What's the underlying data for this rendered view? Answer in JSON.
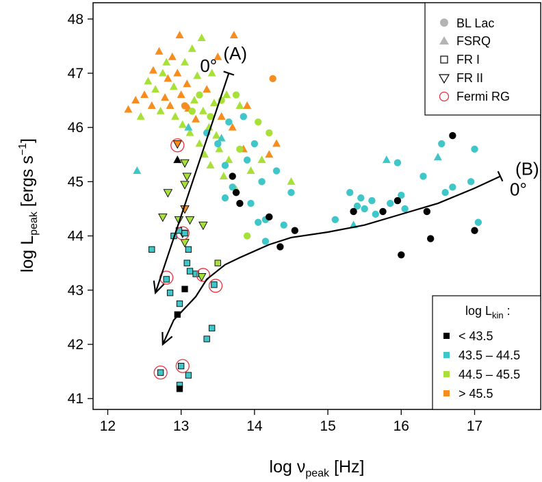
{
  "chart_data": {
    "type": "scatter",
    "title": "",
    "xlabel": "log ν",
    "xlabel_sub": "peak",
    "xlabel_unit": " [Hz]",
    "ylabel": "log L",
    "ylabel_sub": "peak",
    "ylabel_unit": " [ergs s",
    "ylabel_sup": "−1",
    "ylabel_close": "]",
    "xlim": [
      11.8,
      17.9
    ],
    "ylim": [
      40.8,
      48.3
    ],
    "xticks": [
      "12",
      "13",
      "14",
      "15",
      "16",
      "17"
    ],
    "yticks": [
      "41",
      "42",
      "43",
      "44",
      "45",
      "46",
      "47",
      "48"
    ],
    "grid": false,
    "legend_shape": {
      "position": "top-right",
      "entries": [
        {
          "label": "BL Lac",
          "marker": "circle"
        },
        {
          "label": "FSRQ",
          "marker": "triangle"
        },
        {
          "label": "FR I",
          "marker": "square-open"
        },
        {
          "label": "FR II",
          "marker": "triangle-down-open"
        },
        {
          "label": "Fermi RG",
          "marker": "ring-red"
        }
      ]
    },
    "legend_color": {
      "position": "bottom-right",
      "title": "log L",
      "title_sub": "kin",
      "title_tail": " :",
      "entries": [
        {
          "label": "< 43.5",
          "color": "#000000"
        },
        {
          "label": "43.5 – 44.5",
          "color": "#3fc6c9"
        },
        {
          "label": "44.5 – 45.5",
          "color": "#a8e03a"
        },
        {
          "label": "> 45.5",
          "color": "#f78c1f"
        }
      ]
    },
    "colors": {
      "black": "#000000",
      "cyan": "#3fc6c9",
      "green": "#a8e03a",
      "orange": "#f78c1f",
      "fermi": "#e8323c"
    },
    "tracks": [
      {
        "name": "(A)",
        "label_angle": "0°",
        "x": [
          13.65,
          12.65
        ],
        "y": [
          47.0,
          42.95
        ]
      },
      {
        "name": "(B)",
        "label_angle": "0°",
        "x": [
          17.35,
          17.0,
          16.5,
          16.0,
          15.5,
          15.0,
          14.5,
          14.2,
          13.8,
          13.6,
          13.35,
          13.2,
          12.9,
          12.75
        ],
        "y": [
          45.1,
          44.88,
          44.6,
          44.4,
          44.2,
          44.07,
          43.97,
          43.84,
          43.6,
          43.47,
          43.2,
          42.88,
          42.45,
          42.0
        ]
      }
    ],
    "points": [
      {
        "x": 12.28,
        "y": 46.33,
        "m": "tri",
        "c": "orange"
      },
      {
        "x": 12.38,
        "y": 46.5,
        "m": "tri",
        "c": "orange"
      },
      {
        "x": 12.45,
        "y": 46.2,
        "m": "tri",
        "c": "green"
      },
      {
        "x": 12.5,
        "y": 46.6,
        "m": "tri",
        "c": "orange"
      },
      {
        "x": 12.55,
        "y": 46.85,
        "m": "tri",
        "c": "green"
      },
      {
        "x": 12.6,
        "y": 46.4,
        "m": "tri",
        "c": "orange"
      },
      {
        "x": 12.62,
        "y": 47.05,
        "m": "tri",
        "c": "orange"
      },
      {
        "x": 12.65,
        "y": 46.7,
        "m": "tri",
        "c": "green"
      },
      {
        "x": 12.7,
        "y": 47.4,
        "m": "tri",
        "c": "orange"
      },
      {
        "x": 12.72,
        "y": 46.3,
        "m": "tri",
        "c": "green"
      },
      {
        "x": 12.75,
        "y": 47.0,
        "m": "tri",
        "c": "green"
      },
      {
        "x": 12.78,
        "y": 46.55,
        "m": "tri",
        "c": "orange"
      },
      {
        "x": 12.8,
        "y": 47.2,
        "m": "tri",
        "c": "green"
      },
      {
        "x": 12.82,
        "y": 46.9,
        "m": "tri",
        "c": "orange"
      },
      {
        "x": 12.85,
        "y": 46.4,
        "m": "tri",
        "c": "orange"
      },
      {
        "x": 12.88,
        "y": 47.3,
        "m": "tri",
        "c": "orange"
      },
      {
        "x": 12.9,
        "y": 46.75,
        "m": "tri",
        "c": "green"
      },
      {
        "x": 12.92,
        "y": 46.2,
        "m": "tri",
        "c": "green"
      },
      {
        "x": 12.95,
        "y": 47.0,
        "m": "tri",
        "c": "orange"
      },
      {
        "x": 12.98,
        "y": 47.7,
        "m": "tri",
        "c": "orange"
      },
      {
        "x": 13.0,
        "y": 46.6,
        "m": "tri",
        "c": "orange"
      },
      {
        "x": 13.02,
        "y": 46.05,
        "m": "tri",
        "c": "green"
      },
      {
        "x": 13.05,
        "y": 47.2,
        "m": "tri",
        "c": "green"
      },
      {
        "x": 13.08,
        "y": 46.8,
        "m": "tri",
        "c": "orange"
      },
      {
        "x": 13.1,
        "y": 46.35,
        "m": "tri",
        "c": "orange"
      },
      {
        "x": 13.12,
        "y": 45.9,
        "m": "tri",
        "c": "green"
      },
      {
        "x": 13.15,
        "y": 47.45,
        "m": "tri",
        "c": "green"
      },
      {
        "x": 13.18,
        "y": 46.5,
        "m": "tri",
        "c": "green"
      },
      {
        "x": 13.2,
        "y": 46.15,
        "m": "tri",
        "c": "orange"
      },
      {
        "x": 13.22,
        "y": 46.95,
        "m": "tri",
        "c": "green"
      },
      {
        "x": 13.25,
        "y": 45.7,
        "m": "tri",
        "c": "green"
      },
      {
        "x": 13.28,
        "y": 47.65,
        "m": "tri",
        "c": "green"
      },
      {
        "x": 13.3,
        "y": 46.3,
        "m": "tri",
        "c": "green"
      },
      {
        "x": 13.32,
        "y": 45.5,
        "m": "tri",
        "c": "green"
      },
      {
        "x": 13.35,
        "y": 46.7,
        "m": "tri",
        "c": "orange"
      },
      {
        "x": 13.38,
        "y": 46.0,
        "m": "tri",
        "c": "green"
      },
      {
        "x": 13.4,
        "y": 45.3,
        "m": "tri",
        "c": "green"
      },
      {
        "x": 13.42,
        "y": 47.0,
        "m": "tri",
        "c": "green"
      },
      {
        "x": 13.45,
        "y": 46.45,
        "m": "tri",
        "c": "green"
      },
      {
        "x": 13.48,
        "y": 45.85,
        "m": "tri",
        "c": "green"
      },
      {
        "x": 13.5,
        "y": 47.3,
        "m": "tri",
        "c": "orange"
      },
      {
        "x": 13.52,
        "y": 45.6,
        "m": "tri",
        "c": "green"
      },
      {
        "x": 13.55,
        "y": 46.2,
        "m": "tri",
        "c": "orange"
      },
      {
        "x": 13.58,
        "y": 45.1,
        "m": "tri",
        "c": "green"
      },
      {
        "x": 13.62,
        "y": 46.6,
        "m": "tri",
        "c": "green"
      },
      {
        "x": 13.65,
        "y": 45.4,
        "m": "tri",
        "c": "green"
      },
      {
        "x": 13.7,
        "y": 46.0,
        "m": "tri",
        "c": "orange"
      },
      {
        "x": 13.72,
        "y": 47.7,
        "m": "tri",
        "c": "orange"
      },
      {
        "x": 13.75,
        "y": 44.85,
        "m": "tri",
        "c": "green"
      },
      {
        "x": 13.8,
        "y": 46.4,
        "m": "tri",
        "c": "green"
      },
      {
        "x": 13.85,
        "y": 45.6,
        "m": "tri",
        "c": "orange"
      },
      {
        "x": 13.9,
        "y": 46.4,
        "m": "tri",
        "c": "orange"
      },
      {
        "x": 13.95,
        "y": 45.2,
        "m": "tri",
        "c": "green"
      },
      {
        "x": 14.1,
        "y": 45.4,
        "m": "tri",
        "c": "green"
      },
      {
        "x": 14.2,
        "y": 45.5,
        "m": "tri",
        "c": "orange"
      },
      {
        "x": 14.3,
        "y": 45.7,
        "m": "tri",
        "c": "orange"
      },
      {
        "x": 14.5,
        "y": 45.0,
        "m": "tri",
        "c": "green"
      },
      {
        "x": 12.4,
        "y": 45.2,
        "m": "tri",
        "c": "cyan"
      },
      {
        "x": 13.1,
        "y": 46.0,
        "m": "tri",
        "c": "cyan"
      },
      {
        "x": 13.55,
        "y": 45.8,
        "m": "tri",
        "c": "cyan"
      },
      {
        "x": 15.35,
        "y": 44.2,
        "m": "tri",
        "c": "cyan"
      },
      {
        "x": 15.8,
        "y": 45.4,
        "m": "tri",
        "c": "cyan"
      },
      {
        "x": 16.5,
        "y": 45.45,
        "m": "tri",
        "c": "cyan"
      },
      {
        "x": 12.95,
        "y": 45.4,
        "m": "tri",
        "c": "black"
      },
      {
        "x": 13.05,
        "y": 46.4,
        "m": "circ",
        "c": "orange"
      },
      {
        "x": 13.15,
        "y": 46.3,
        "m": "circ",
        "c": "green"
      },
      {
        "x": 13.25,
        "y": 46.6,
        "m": "circ",
        "c": "green"
      },
      {
        "x": 13.35,
        "y": 45.9,
        "m": "circ",
        "c": "cyan"
      },
      {
        "x": 13.4,
        "y": 46.2,
        "m": "circ",
        "c": "green"
      },
      {
        "x": 13.5,
        "y": 45.7,
        "m": "circ",
        "c": "cyan"
      },
      {
        "x": 13.55,
        "y": 46.5,
        "m": "circ",
        "c": "green"
      },
      {
        "x": 13.6,
        "y": 45.3,
        "m": "circ",
        "c": "cyan"
      },
      {
        "x": 13.65,
        "y": 46.1,
        "m": "circ",
        "c": "cyan"
      },
      {
        "x": 13.7,
        "y": 44.9,
        "m": "circ",
        "c": "cyan"
      },
      {
        "x": 13.75,
        "y": 46.6,
        "m": "circ",
        "c": "green"
      },
      {
        "x": 13.8,
        "y": 45.6,
        "m": "circ",
        "c": "green"
      },
      {
        "x": 13.85,
        "y": 46.2,
        "m": "circ",
        "c": "cyan"
      },
      {
        "x": 13.9,
        "y": 45.4,
        "m": "circ",
        "c": "cyan"
      },
      {
        "x": 13.95,
        "y": 44.6,
        "m": "circ",
        "c": "cyan"
      },
      {
        "x": 14.0,
        "y": 45.7,
        "m": "circ",
        "c": "cyan"
      },
      {
        "x": 14.05,
        "y": 46.1,
        "m": "circ",
        "c": "green"
      },
      {
        "x": 14.1,
        "y": 45.0,
        "m": "circ",
        "c": "cyan"
      },
      {
        "x": 14.15,
        "y": 44.3,
        "m": "circ",
        "c": "cyan"
      },
      {
        "x": 14.2,
        "y": 45.9,
        "m": "circ",
        "c": "green"
      },
      {
        "x": 14.3,
        "y": 45.2,
        "m": "circ",
        "c": "cyan"
      },
      {
        "x": 14.4,
        "y": 44.2,
        "m": "circ",
        "c": "cyan"
      },
      {
        "x": 14.5,
        "y": 44.8,
        "m": "circ",
        "c": "cyan"
      },
      {
        "x": 14.15,
        "y": 43.9,
        "m": "circ",
        "c": "cyan"
      },
      {
        "x": 13.9,
        "y": 44.0,
        "m": "circ",
        "c": "green"
      },
      {
        "x": 14.25,
        "y": 46.9,
        "m": "circ",
        "c": "orange"
      },
      {
        "x": 13.6,
        "y": 44.7,
        "m": "circ",
        "c": "cyan"
      },
      {
        "x": 14.05,
        "y": 44.25,
        "m": "circ",
        "c": "cyan"
      },
      {
        "x": 15.1,
        "y": 44.3,
        "m": "circ",
        "c": "cyan"
      },
      {
        "x": 15.3,
        "y": 44.8,
        "m": "circ",
        "c": "cyan"
      },
      {
        "x": 15.4,
        "y": 44.55,
        "m": "circ",
        "c": "cyan"
      },
      {
        "x": 15.45,
        "y": 44.7,
        "m": "circ",
        "c": "cyan"
      },
      {
        "x": 15.5,
        "y": 44.5,
        "m": "circ",
        "c": "cyan"
      },
      {
        "x": 15.6,
        "y": 44.65,
        "m": "circ",
        "c": "cyan"
      },
      {
        "x": 15.65,
        "y": 44.4,
        "m": "circ",
        "c": "cyan"
      },
      {
        "x": 15.85,
        "y": 44.6,
        "m": "circ",
        "c": "cyan"
      },
      {
        "x": 15.95,
        "y": 45.35,
        "m": "circ",
        "c": "cyan"
      },
      {
        "x": 16.0,
        "y": 44.75,
        "m": "circ",
        "c": "cyan"
      },
      {
        "x": 16.05,
        "y": 44.5,
        "m": "circ",
        "c": "cyan"
      },
      {
        "x": 16.3,
        "y": 45.1,
        "m": "circ",
        "c": "cyan"
      },
      {
        "x": 16.55,
        "y": 45.7,
        "m": "circ",
        "c": "cyan"
      },
      {
        "x": 16.6,
        "y": 44.8,
        "m": "circ",
        "c": "cyan"
      },
      {
        "x": 16.7,
        "y": 44.9,
        "m": "circ",
        "c": "cyan"
      },
      {
        "x": 16.95,
        "y": 45.0,
        "m": "circ",
        "c": "cyan"
      },
      {
        "x": 17.0,
        "y": 45.6,
        "m": "circ",
        "c": "cyan"
      },
      {
        "x": 17.05,
        "y": 44.25,
        "m": "circ",
        "c": "cyan"
      },
      {
        "x": 13.7,
        "y": 45.1,
        "m": "circ",
        "c": "black"
      },
      {
        "x": 13.75,
        "y": 44.8,
        "m": "circ",
        "c": "black"
      },
      {
        "x": 13.8,
        "y": 44.6,
        "m": "circ",
        "c": "black"
      },
      {
        "x": 14.2,
        "y": 44.35,
        "m": "circ",
        "c": "black"
      },
      {
        "x": 14.35,
        "y": 43.8,
        "m": "circ",
        "c": "black"
      },
      {
        "x": 14.55,
        "y": 44.1,
        "m": "circ",
        "c": "black"
      },
      {
        "x": 15.35,
        "y": 44.45,
        "m": "circ",
        "c": "black"
      },
      {
        "x": 15.75,
        "y": 44.45,
        "m": "circ",
        "c": "black"
      },
      {
        "x": 15.95,
        "y": 44.65,
        "m": "circ",
        "c": "black"
      },
      {
        "x": 16.0,
        "y": 43.65,
        "m": "circ",
        "c": "black"
      },
      {
        "x": 16.35,
        "y": 44.45,
        "m": "circ",
        "c": "black"
      },
      {
        "x": 16.4,
        "y": 43.95,
        "m": "circ",
        "c": "black"
      },
      {
        "x": 16.7,
        "y": 45.85,
        "m": "circ",
        "c": "black"
      },
      {
        "x": 17.0,
        "y": 44.1,
        "m": "circ",
        "c": "black"
      },
      {
        "x": 12.95,
        "y": 45.7,
        "m": "tridown",
        "c": "orange"
      },
      {
        "x": 13.05,
        "y": 45.35,
        "m": "tridown",
        "c": "green"
      },
      {
        "x": 13.08,
        "y": 45.1,
        "m": "tridown",
        "c": "green"
      },
      {
        "x": 13.05,
        "y": 44.95,
        "m": "tridown",
        "c": "green"
      },
      {
        "x": 12.82,
        "y": 44.8,
        "m": "tridown",
        "c": "green"
      },
      {
        "x": 12.75,
        "y": 44.35,
        "m": "tridown",
        "c": "green"
      },
      {
        "x": 12.97,
        "y": 44.3,
        "m": "tridown",
        "c": "green"
      },
      {
        "x": 13.05,
        "y": 44.5,
        "m": "tridown",
        "c": "orange"
      },
      {
        "x": 13.12,
        "y": 44.3,
        "m": "tridown",
        "c": "green"
      },
      {
        "x": 13.3,
        "y": 44.2,
        "m": "tridown",
        "c": "green"
      },
      {
        "x": 13.02,
        "y": 44.05,
        "m": "tridown",
        "c": "green"
      },
      {
        "x": 13.05,
        "y": 43.88,
        "m": "tridown",
        "c": "green"
      },
      {
        "x": 13.28,
        "y": 43.25,
        "m": "tridown",
        "c": "green"
      },
      {
        "x": 12.6,
        "y": 43.75,
        "m": "sq",
        "c": "cyan"
      },
      {
        "x": 12.8,
        "y": 43.2,
        "m": "sq",
        "c": "cyan"
      },
      {
        "x": 12.85,
        "y": 42.95,
        "m": "sq",
        "c": "cyan"
      },
      {
        "x": 12.9,
        "y": 44.0,
        "m": "sq",
        "c": "cyan"
      },
      {
        "x": 12.98,
        "y": 42.75,
        "m": "sq",
        "c": "cyan"
      },
      {
        "x": 12.97,
        "y": 44.1,
        "m": "sq",
        "c": "cyan"
      },
      {
        "x": 13.05,
        "y": 44.05,
        "m": "sq",
        "c": "cyan"
      },
      {
        "x": 13.08,
        "y": 43.5,
        "m": "sq",
        "c": "cyan"
      },
      {
        "x": 13.12,
        "y": 43.35,
        "m": "sq",
        "c": "cyan"
      },
      {
        "x": 13.1,
        "y": 43.75,
        "m": "sq",
        "c": "cyan"
      },
      {
        "x": 13.2,
        "y": 43.3,
        "m": "sq",
        "c": "cyan"
      },
      {
        "x": 13.35,
        "y": 42.1,
        "m": "sq",
        "c": "cyan"
      },
      {
        "x": 13.42,
        "y": 42.3,
        "m": "sq",
        "c": "cyan"
      },
      {
        "x": 13.45,
        "y": 43.1,
        "m": "sq",
        "c": "cyan"
      },
      {
        "x": 12.72,
        "y": 41.48,
        "m": "sq",
        "c": "cyan"
      },
      {
        "x": 13.0,
        "y": 41.6,
        "m": "sq",
        "c": "cyan"
      },
      {
        "x": 13.1,
        "y": 41.43,
        "m": "sq",
        "c": "cyan"
      },
      {
        "x": 12.98,
        "y": 41.25,
        "m": "sq",
        "c": "cyan"
      },
      {
        "x": 12.98,
        "y": 41.18,
        "m": "sq",
        "c": "black"
      },
      {
        "x": 12.95,
        "y": 42.55,
        "m": "sq",
        "c": "black"
      },
      {
        "x": 13.05,
        "y": 43.02,
        "m": "sq",
        "c": "black"
      },
      {
        "x": 13.5,
        "y": 43.5,
        "m": "sq",
        "c": "green"
      }
    ],
    "fermi": [
      {
        "x": 12.95,
        "y": 45.67
      },
      {
        "x": 12.8,
        "y": 43.23
      },
      {
        "x": 13.3,
        "y": 43.28
      },
      {
        "x": 13.47,
        "y": 43.08
      },
      {
        "x": 12.72,
        "y": 41.48
      },
      {
        "x": 13.02,
        "y": 41.6
      },
      {
        "x": 13.02,
        "y": 44.05
      }
    ]
  }
}
